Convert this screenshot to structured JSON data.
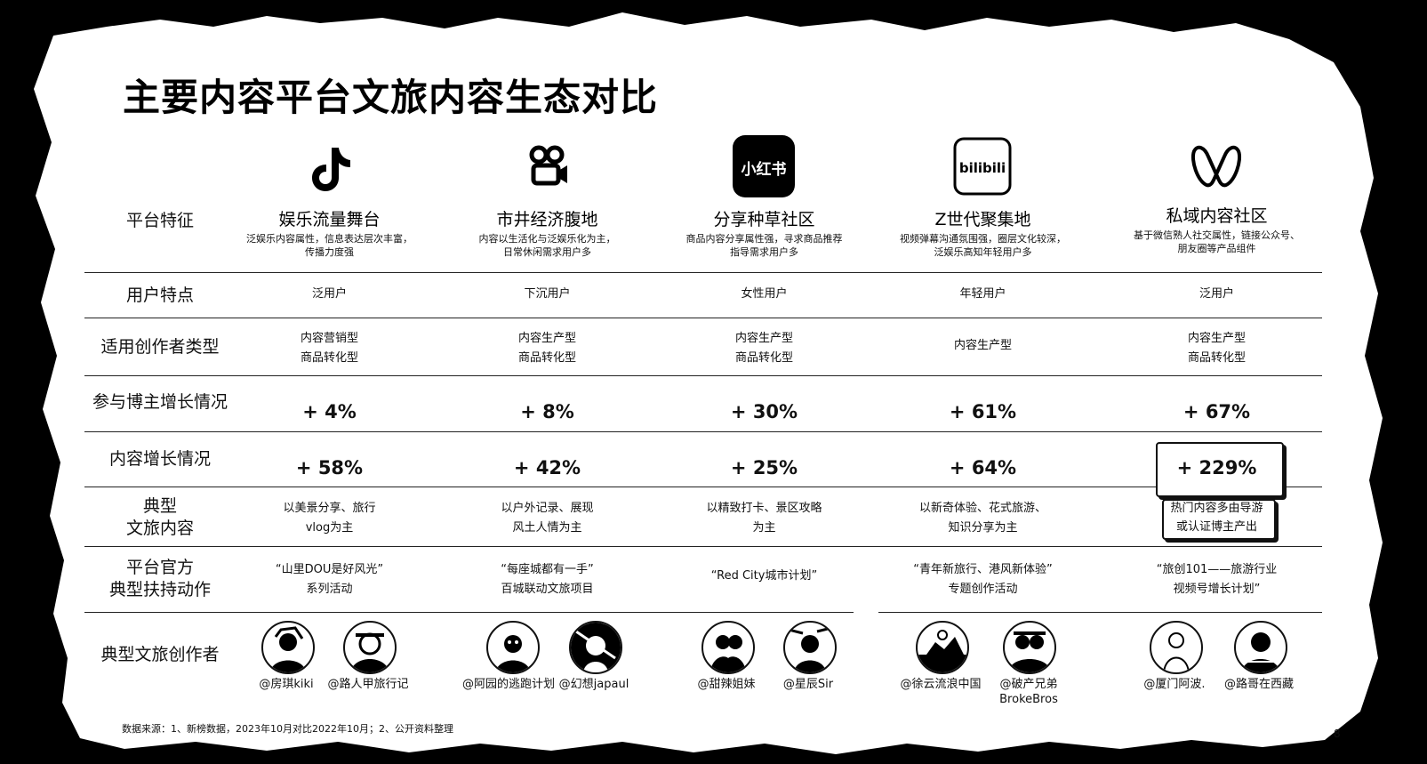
{
  "title": "主要内容平台文旅内容生态对比",
  "row_labels": {
    "platform": "平台特征",
    "users": "用户特点",
    "creator_type": "适用创作者类型",
    "blogger_growth": "参与博主增长情况",
    "content_growth": "内容增长情况",
    "typical_content_1": "典型",
    "typical_content_2": "文旅内容",
    "official_1": "平台官方",
    "official_2": "典型扶持动作",
    "creators": "典型文旅创作者"
  },
  "platforms": [
    {
      "logo": "douyin-icon",
      "name": "娱乐流量舞台",
      "desc1": "泛娱乐内容属性，信息表达层次丰富，",
      "desc2": "传播力度强",
      "users": "泛用户",
      "creator1": "内容营销型",
      "creator2": "商品转化型",
      "blogger_growth": "+ 4%",
      "content_growth": "+ 58%",
      "content1": "以美景分享、旅行",
      "content2": "vlog为主",
      "official1": "“山里DOU是好风光”",
      "official2": "系列活动",
      "creator_a": "@房琪kiki",
      "creator_b": "@路人甲旅行记"
    },
    {
      "logo": "kuaishou-icon",
      "name": "市井经济腹地",
      "desc1": "内容以生活化与泛娱乐化为主，",
      "desc2": "日常休闲需求用户多",
      "users": "下沉用户",
      "creator1": "内容生产型",
      "creator2": "商品转化型",
      "blogger_growth": "+ 8%",
      "content_growth": "+ 42%",
      "content1": "以户外记录、展现",
      "content2": "风土人情为主",
      "official1": "“每座城都有一手”",
      "official2": "百城联动文旅项目",
      "creator_a": "@阿园的逃跑计划",
      "creator_b": "@幻想japaul"
    },
    {
      "logo": "xiaohongshu-icon",
      "logo_text": "小红书",
      "name": "分享种草社区",
      "desc1": "商品内容分享属性强，寻求商品推荐",
      "desc2": "指导需求用户多",
      "users": "女性用户",
      "creator1": "内容生产型",
      "creator2": "商品转化型",
      "blogger_growth": "+ 30%",
      "content_growth": "+ 25%",
      "content1": "以精致打卡、景区攻略",
      "content2": "为主",
      "official1": "“Red City城市计划”",
      "official2": "",
      "creator_a": "@甜辣姐妹",
      "creator_b": "@星辰Sir"
    },
    {
      "logo": "bilibili-icon",
      "logo_text": "bilibili",
      "name": "Z世代聚集地",
      "desc1": "视频弹幕沟通氛围强，圈层文化较深，",
      "desc2": "泛娱乐高知年轻用户多",
      "users": "年轻用户",
      "creator1": "内容生产型",
      "creator2": "",
      "blogger_growth": "+ 61%",
      "content_growth": "+ 64%",
      "content1": "以新奇体验、花式旅游、",
      "content2": "知识分享为主",
      "official1": "“青年新旅行、港风新体验”",
      "official2": "专题创作活动",
      "creator_a": "@徐云流浪中国",
      "creator_b": "@破产兄弟BrokeBros"
    },
    {
      "logo": "wechat-channels-icon",
      "name": "私域内容社区",
      "desc1": "基于微信熟人社交属性，链接公众号、",
      "desc2": "朋友圈等产品组件",
      "users": "泛用户",
      "creator1": "内容生产型",
      "creator2": "商品转化型",
      "blogger_growth": "+ 67%",
      "content_growth": "+ 229%",
      "content1": "热门内容多由导游",
      "content2": "或认证博主产出",
      "official1": "“旅创101——旅游行业",
      "official2": "视频号增长计划”",
      "creator_a": "@厦门阿波.",
      "creator_b": "@路哥在西藏"
    }
  ],
  "footnote": "数据来源：1、新榜数据，2023年10月对比2022年10月；2、公开资料整理",
  "page_number": "8"
}
